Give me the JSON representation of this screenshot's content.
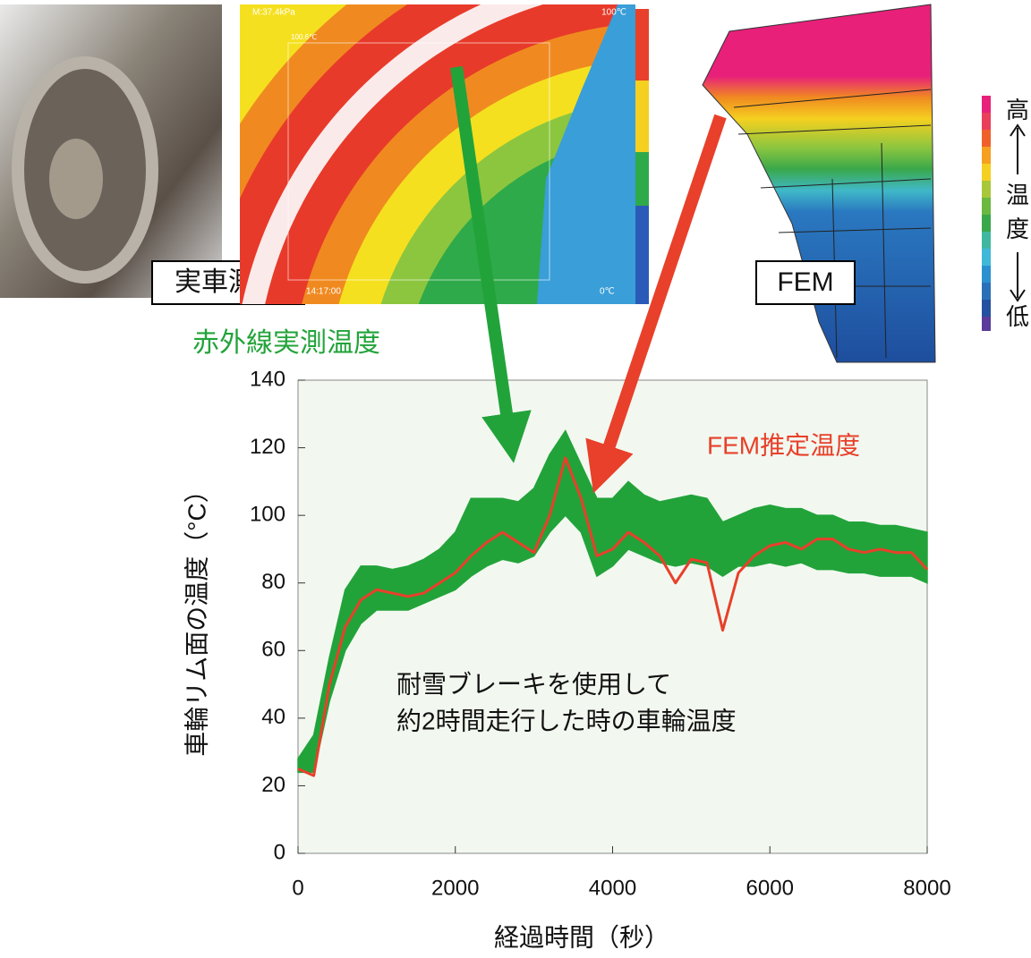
{
  "chart_data": {
    "type": "line",
    "xlabel": "経過時間（秒）",
    "ylabel": "車輪リム面の温度（°C）",
    "x": [
      0,
      200,
      400,
      600,
      800,
      1000,
      1200,
      1400,
      1600,
      1800,
      2000,
      2200,
      2400,
      2600,
      2800,
      3000,
      3200,
      3400,
      3600,
      3800,
      4000,
      4200,
      4400,
      4600,
      4800,
      5000,
      5200,
      5400,
      5600,
      5800,
      6000,
      6200,
      6400,
      6600,
      6800,
      7000,
      7200,
      7400,
      7600,
      7800,
      8000
    ],
    "series": [
      {
        "name": "赤外線実測温度",
        "color": "#22a33a",
        "low": [
          24,
          24,
          45,
          60,
          68,
          72,
          72,
          72,
          74,
          76,
          78,
          82,
          85,
          87,
          86,
          88,
          95,
          100,
          95,
          82,
          85,
          90,
          88,
          86,
          85,
          86,
          85,
          82,
          85,
          85,
          86,
          85,
          86,
          84,
          84,
          83,
          83,
          82,
          82,
          82,
          80
        ],
        "high": [
          28,
          35,
          58,
          78,
          85,
          85,
          84,
          85,
          87,
          90,
          95,
          105,
          105,
          105,
          104,
          108,
          118,
          125,
          115,
          105,
          105,
          110,
          106,
          104,
          105,
          106,
          105,
          98,
          100,
          102,
          103,
          102,
          102,
          100,
          100,
          98,
          98,
          97,
          97,
          96,
          95
        ]
      },
      {
        "name": "FEM推定温度",
        "color": "#e8402a",
        "values": [
          25,
          23,
          50,
          67,
          75,
          78,
          77,
          76,
          77,
          80,
          83,
          88,
          92,
          95,
          92,
          89,
          100,
          117,
          105,
          88,
          90,
          95,
          92,
          88,
          80,
          87,
          86,
          66,
          83,
          88,
          91,
          92,
          90,
          93,
          93,
          90,
          89,
          90,
          89,
          89,
          84
        ]
      }
    ],
    "xlim": [
      0,
      8000
    ],
    "ylim": [
      0,
      140
    ],
    "xticks": [
      0,
      2000,
      4000,
      6000,
      8000
    ],
    "yticks": [
      0,
      20,
      40,
      60,
      80,
      100,
      120,
      140
    ],
    "annotation": [
      "耐雪ブレーキを使用して",
      "約2時間走行した時の車輪温度"
    ]
  },
  "photo": {
    "label": "実車測定"
  },
  "thermal_image": {
    "readout": "M:37.4kPa",
    "max": "100℃",
    "spot": "100.6℃",
    "time": "14:17:00",
    "min": "0℃"
  },
  "fem": {
    "label": "FEM",
    "colorbar_labels": [
      "高",
      "温",
      "度",
      "低"
    ]
  }
}
